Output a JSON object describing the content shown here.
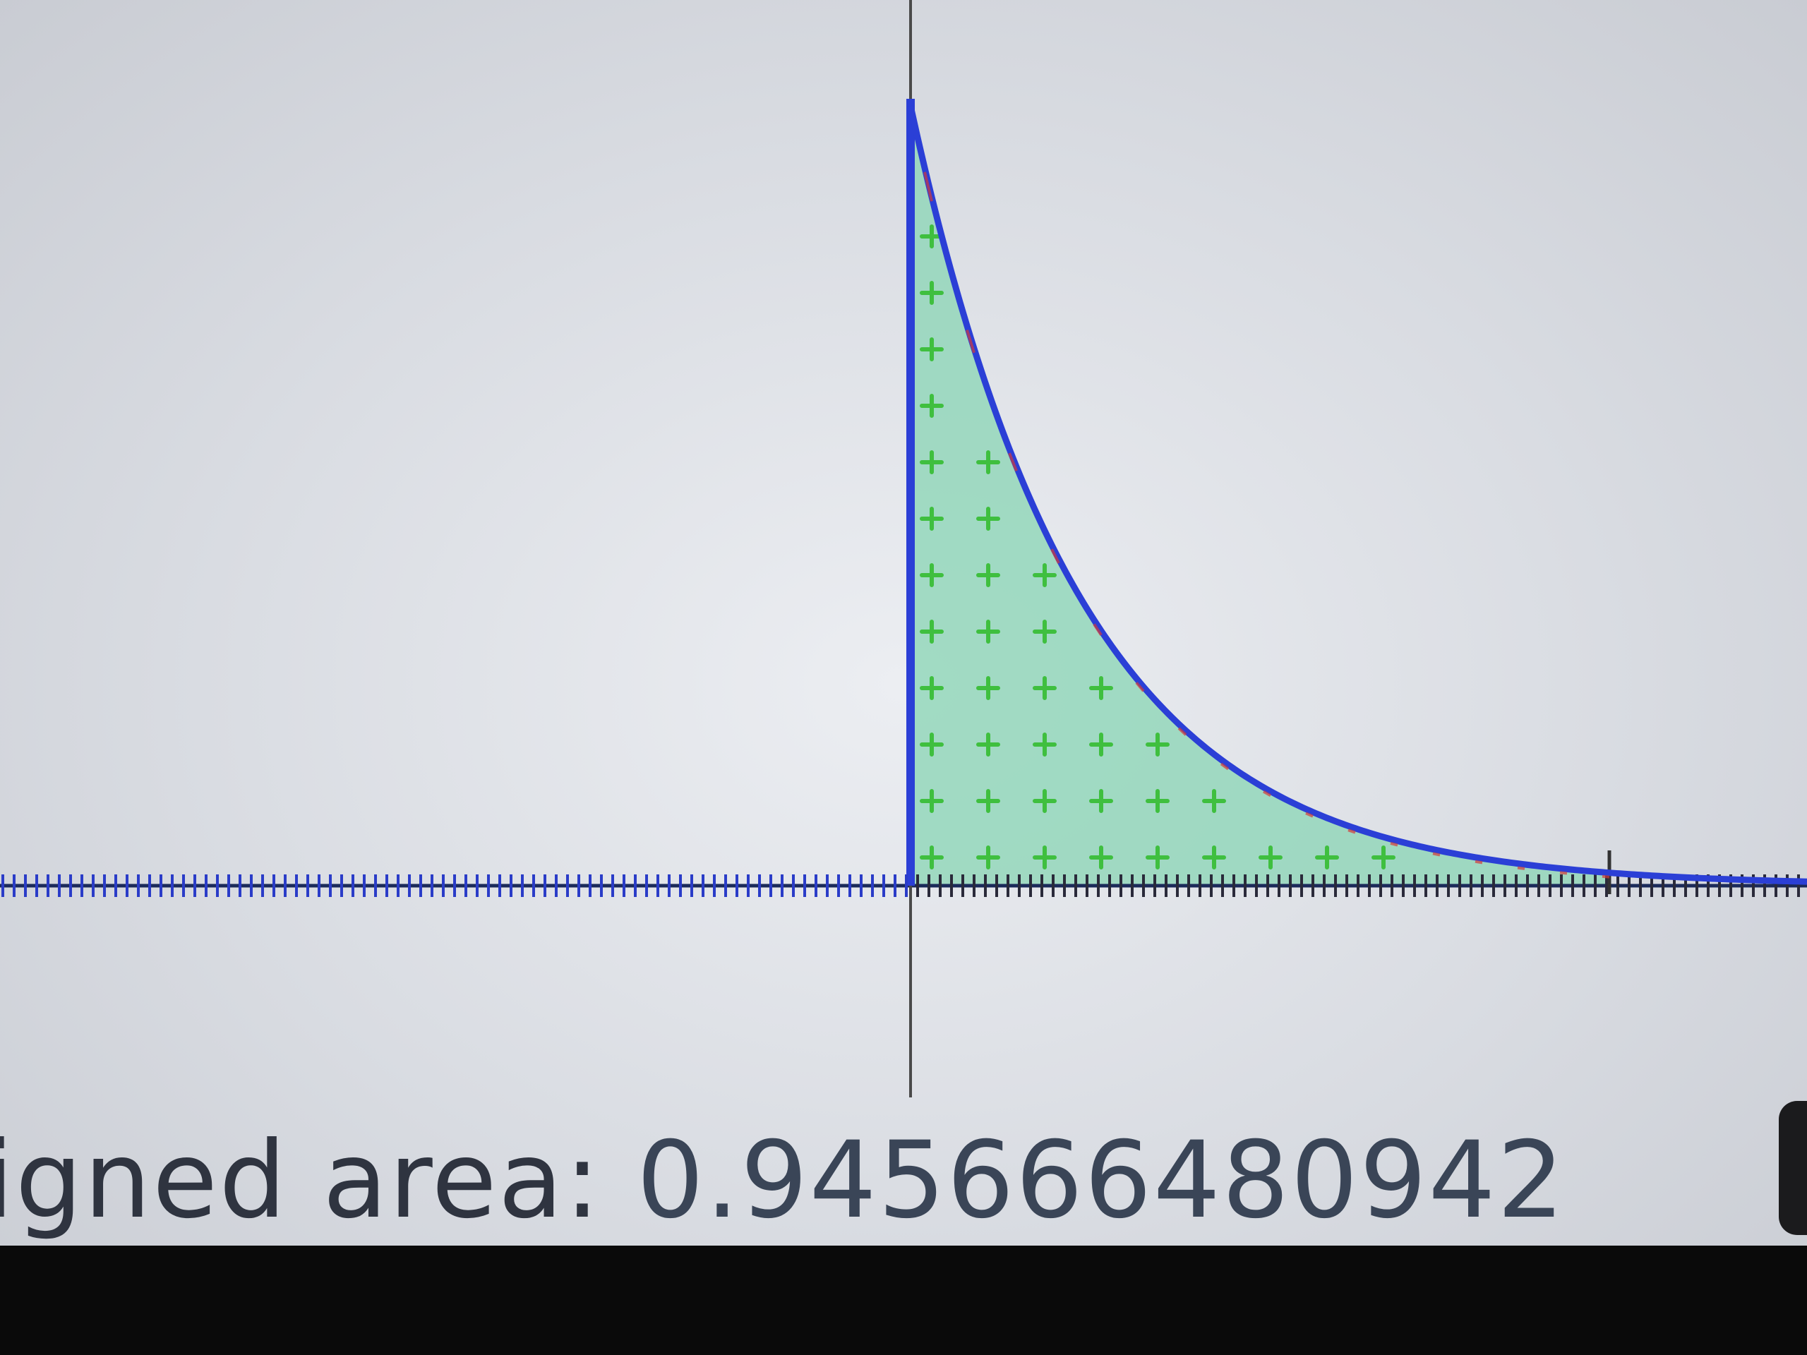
{
  "readout": {
    "label": "igned area:",
    "value": "0.945666480942"
  },
  "plot": {
    "function_shape": "exponential-decay",
    "shaded_interval": [
      0,
      3
    ],
    "curve_color": "#2b3fd6",
    "fill_color": "#8fd6b8",
    "fill_marker_color": "#3fbf3f",
    "axis_color": "#1b2a5a",
    "axis_tick_color": "#2a3cc8",
    "edge_color": "#d23a3a"
  },
  "colors": {
    "screen_background": "#dfe1e6",
    "bezel": "#0a0a0a",
    "readout_text": "#3a4557"
  }
}
